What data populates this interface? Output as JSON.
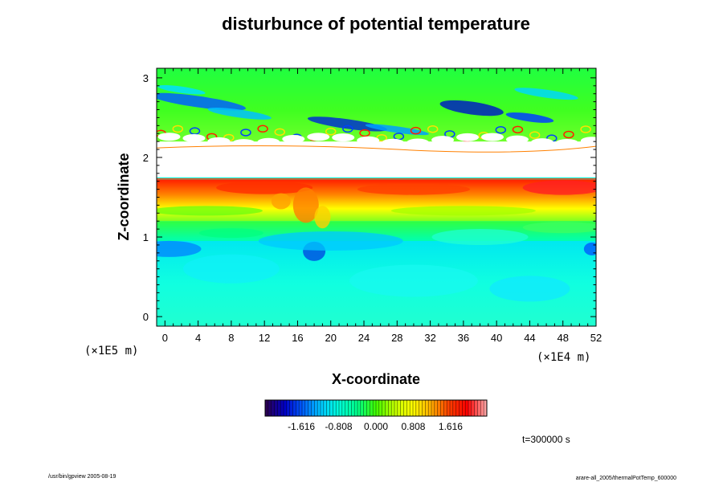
{
  "chart_data": {
    "type": "heatmap",
    "title": "disturbunce of potential temperature",
    "xlabel": "X-coordinate",
    "ylabel": "Z-coordinate",
    "x_unit": "(×1E4 m)",
    "y_unit": "(×1E5 m)",
    "xlim": [
      -1,
      52
    ],
    "ylim": [
      -0.12,
      3.12
    ],
    "x_ticks": [
      0,
      4,
      8,
      12,
      16,
      20,
      24,
      28,
      32,
      36,
      40,
      44,
      48,
      52
    ],
    "y_ticks": [
      0,
      1,
      2,
      3
    ],
    "colorbar": {
      "ticks": [
        "-1.616",
        "-0.808",
        "0.000",
        "0.808",
        "1.616"
      ],
      "tick_values": [
        -1.616,
        -0.808,
        0.0,
        0.808,
        1.616
      ],
      "range": [
        -2.4,
        2.4
      ],
      "colors": [
        "#2a0055",
        "#0000c8",
        "#0060ff",
        "#00c8ff",
        "#00ffd8",
        "#00ff88",
        "#40ff00",
        "#c0ff00",
        "#ffff00",
        "#ffb000",
        "#ff4000",
        "#ff0000",
        "#ffa0a0"
      ]
    },
    "fields": {
      "background": -0.3,
      "bands": [
        {
          "z_range": [
            0,
            0.95
          ],
          "value": -0.5
        },
        {
          "z_range": [
            0.8,
            0.95
          ],
          "value": -1.2
        },
        {
          "z_range": [
            0.95,
            1.2
          ],
          "value": -0.1
        },
        {
          "z_range": [
            1.2,
            1.45
          ],
          "value": 0.4
        },
        {
          "z_range": [
            1.45,
            1.72
          ],
          "value": 1.6
        },
        {
          "z_range": [
            2.35,
            3.05
          ],
          "value": 0.2
        },
        {
          "z_range": [
            2.45,
            2.6
          ],
          "value": -1.6
        }
      ],
      "missing_z_range": [
        1.75,
        2.05
      ]
    },
    "time_label": "t=300000 s"
  },
  "footer": {
    "left": "/usr/bin/gpview 2005-08-19",
    "right": "arare-all_2005/thermalPotTemp_600000"
  }
}
